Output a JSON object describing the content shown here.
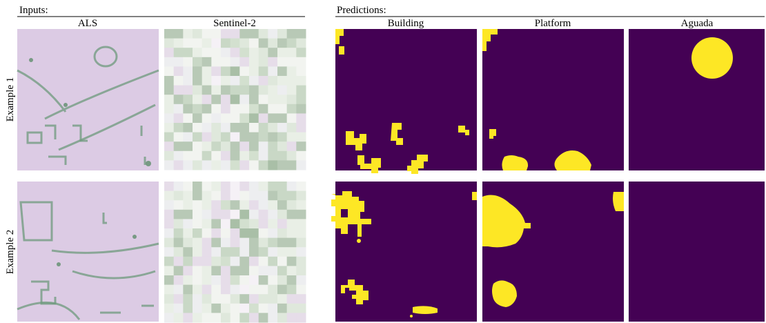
{
  "inputs": {
    "title": "Inputs:",
    "columns": [
      "ALS",
      "Sentinel-2"
    ]
  },
  "predictions": {
    "title": "Predictions:",
    "columns": [
      "Building",
      "Platform",
      "Aguada"
    ]
  },
  "rows": [
    "Example 1",
    "Example 2"
  ]
}
